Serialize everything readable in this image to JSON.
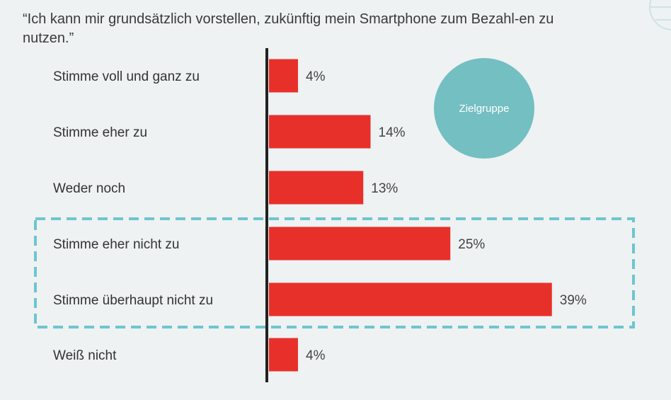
{
  "chart_data": {
    "type": "bar",
    "orientation": "horizontal",
    "title": "“Ich kann mir grundsätzlich vorstellen, zukünftig mein Smartphone zum Bezahl-en zu nutzen.”",
    "categories": [
      "Stimme voll und ganz zu",
      "Stimme eher zu",
      "Weder noch",
      "Stimme eher nicht zu",
      "Stimme überhaupt nicht zu",
      "Weiß nicht"
    ],
    "values": [
      4,
      14,
      13,
      25,
      39,
      4
    ],
    "value_labels": [
      "4%",
      "14%",
      "13%",
      "25%",
      "39%",
      "4%"
    ],
    "unit": "%",
    "xlim": [
      0,
      39
    ],
    "grid": false,
    "legend": "none",
    "highlight": {
      "categories": [
        "Stimme eher nicht zu",
        "Stimme überhaupt nicht zu"
      ],
      "style": "dashed-box"
    },
    "badge": {
      "label": "Zielgruppe",
      "position": "top-right"
    }
  },
  "colors": {
    "background": "#eef2f2",
    "bar": "#e8302b",
    "axis": "#222222",
    "highlight_box": "#6fc4d2",
    "badge": "#73bfc2",
    "text": "#333333"
  }
}
